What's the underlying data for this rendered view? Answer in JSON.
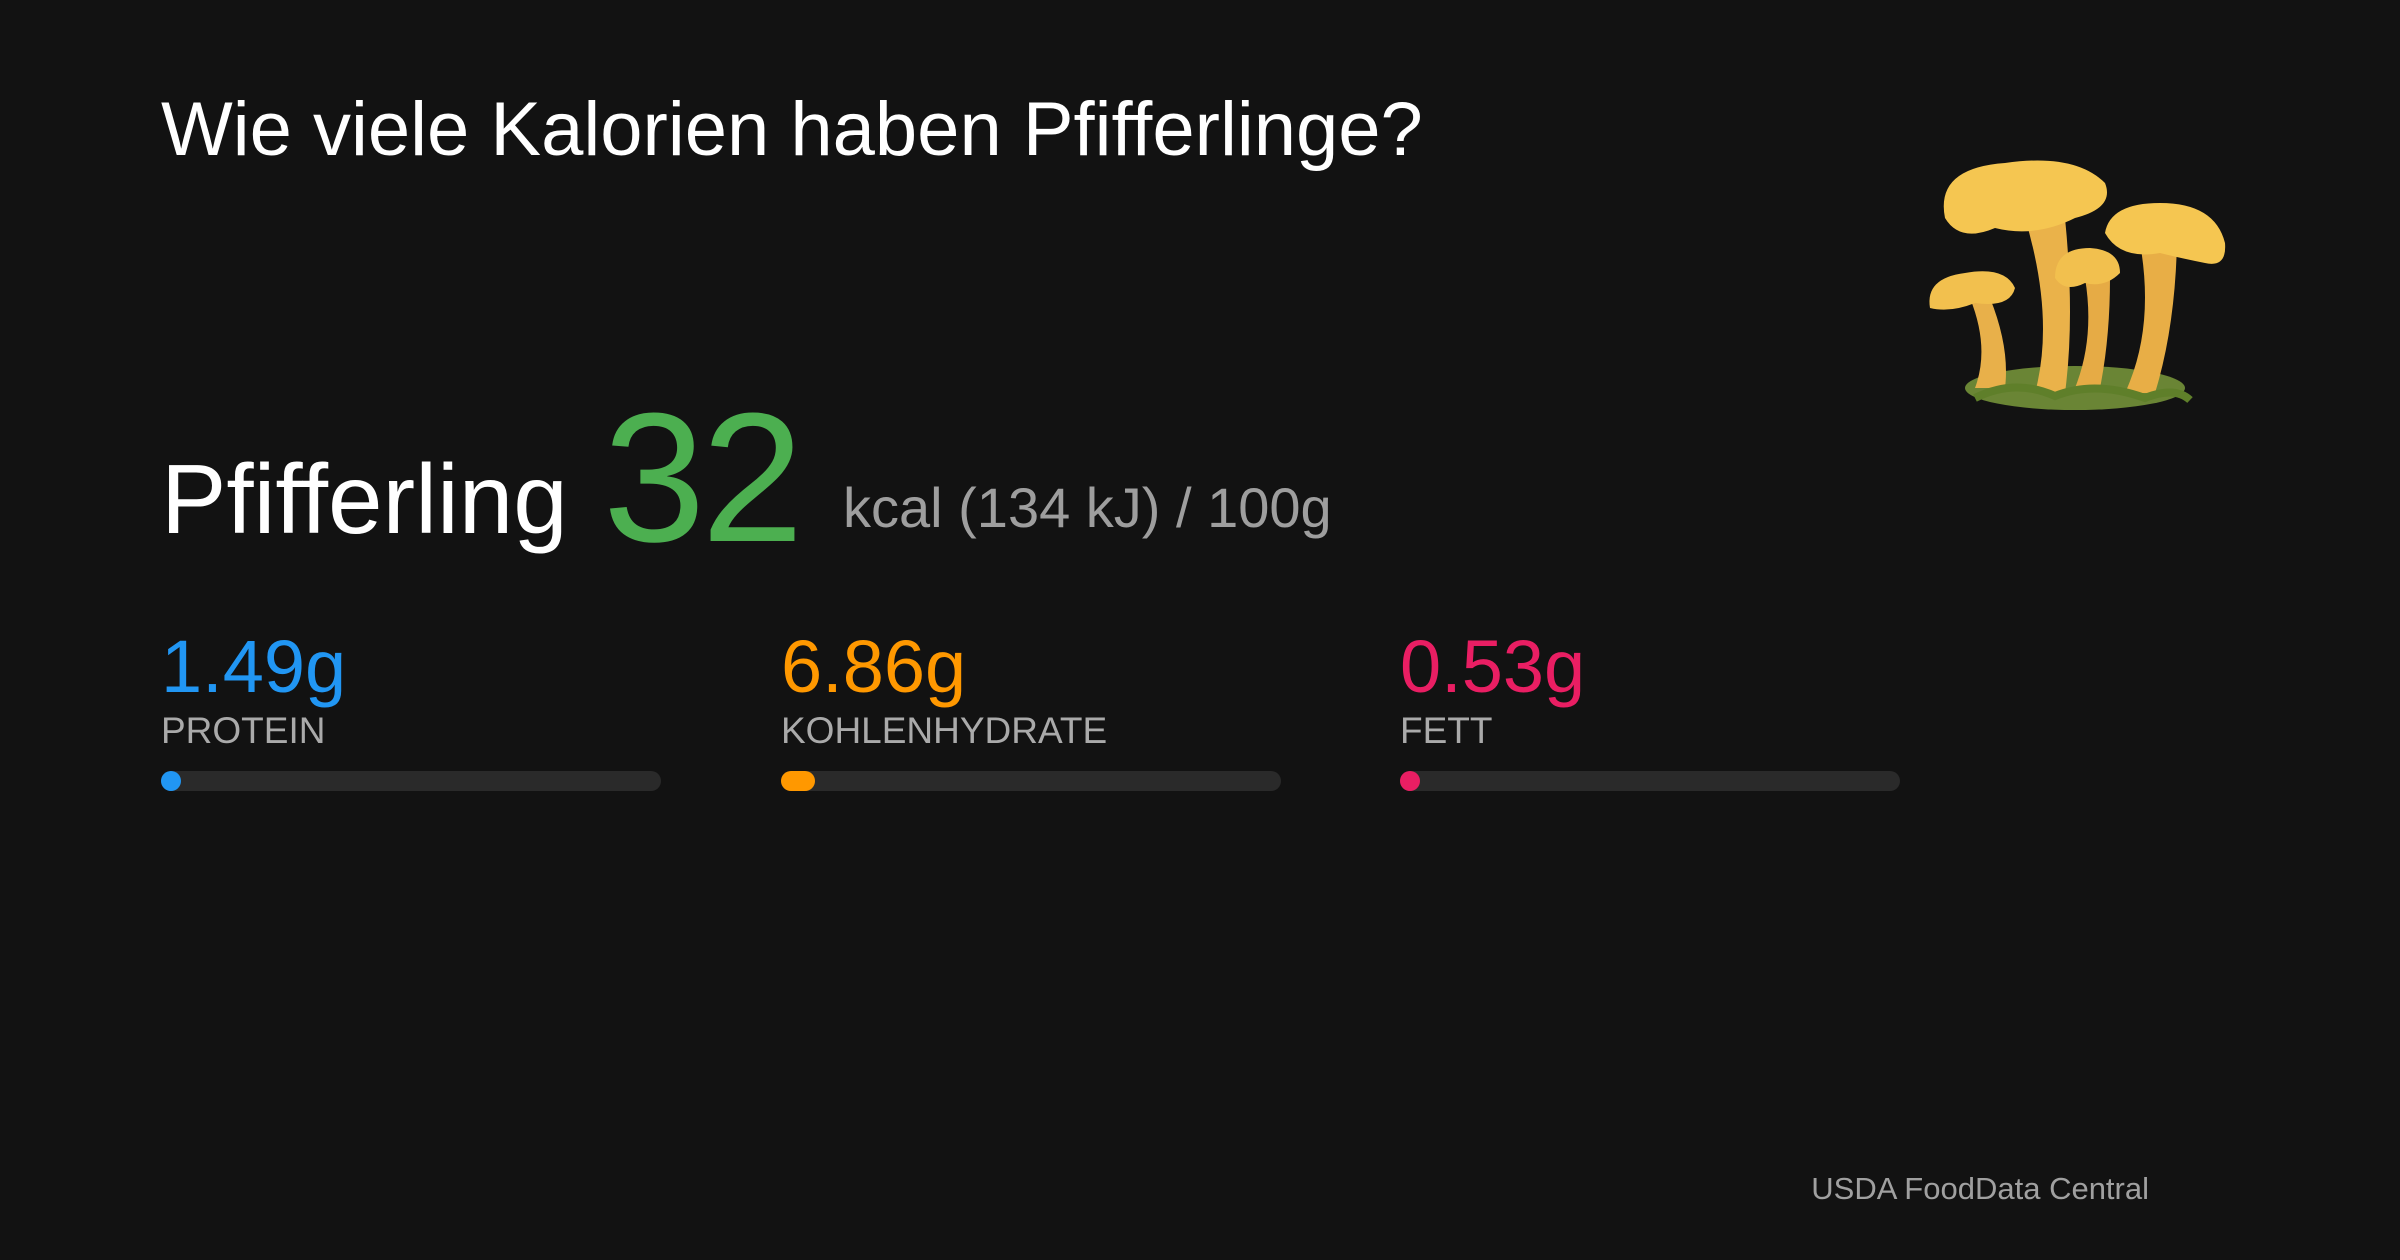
{
  "title": "Wie viele Kalorien haben Pfifferlinge?",
  "food": {
    "name": "Pfifferling",
    "kcal": 32,
    "unit_text": "kcal (134 kJ) / 100g"
  },
  "nutrients": {
    "xlim": [
      0,
      100
    ],
    "items": [
      {
        "label": "PROTEIN",
        "value": 1.49,
        "value_label": "1.49g",
        "color": "#2196f3"
      },
      {
        "label": "KOHLENHYDRATE",
        "value": 6.86,
        "value_label": "6.86g",
        "color": "#ff9800"
      },
      {
        "label": "FETT",
        "value": 0.53,
        "value_label": "0.53g",
        "color": "#e91e63"
      }
    ]
  },
  "source": "USDA FoodData Central"
}
